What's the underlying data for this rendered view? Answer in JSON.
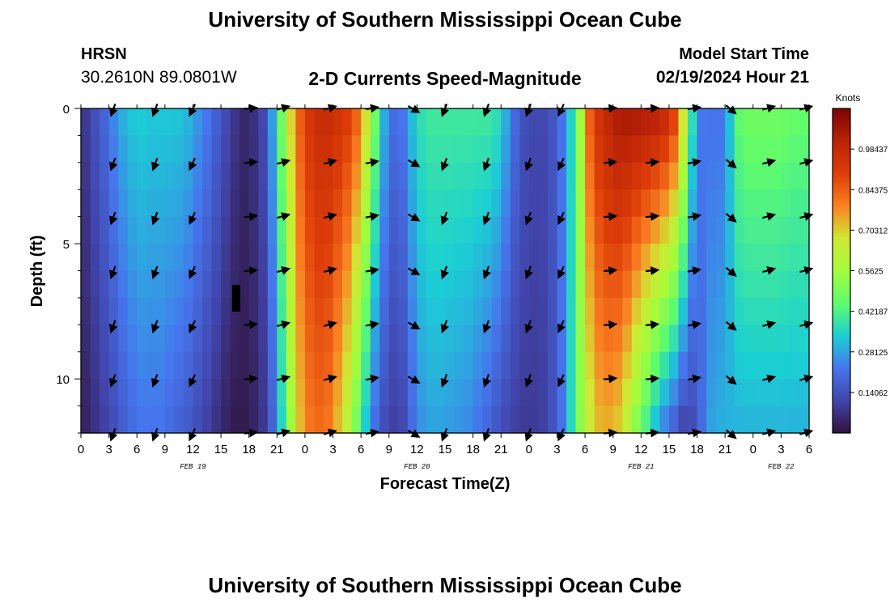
{
  "header": {
    "title": "University of Southern Mississippi Ocean Cube",
    "station_id": "HRSN",
    "coords": "30.2610N  89.0801W",
    "plot_title": "2-D Currents Speed-Magnitude",
    "model_start_label": "Model Start Time",
    "model_start_time": "02/19/2024 Hour 21"
  },
  "footer": {
    "title": "University of Southern Mississippi Ocean Cube"
  },
  "chart_data": {
    "type": "heatmap",
    "title": "2-D Currents Speed-Magnitude",
    "xlabel": "Forecast Time(Z)",
    "ylabel": "Depth (ft)",
    "xlim": [
      0,
      78
    ],
    "ylim": [
      0,
      12
    ],
    "x_ticks": [
      0,
      3,
      6,
      9,
      12,
      15,
      18,
      21,
      24,
      27,
      30,
      33,
      36,
      39,
      42,
      45,
      48,
      51,
      54,
      57,
      60,
      63,
      66,
      69,
      72,
      75,
      78
    ],
    "x_tick_labels": [
      "0",
      "3",
      "6",
      "9",
      "12",
      "15",
      "18",
      "21",
      "0",
      "3",
      "6",
      "9",
      "12",
      "15",
      "18",
      "21",
      "0",
      "3",
      "6",
      "9",
      "12",
      "15",
      "18",
      "21",
      "0",
      "3",
      "6"
    ],
    "y_ticks": [
      0,
      5,
      10
    ],
    "y_tick_labels": [
      "0",
      "5",
      "10"
    ],
    "day_labels": [
      {
        "x": 12,
        "label": "FEB 19"
      },
      {
        "x": 36,
        "label": "FEB 20"
      },
      {
        "x": 60,
        "label": "FEB 21"
      },
      {
        "x": 75,
        "label": "FEB 22"
      }
    ],
    "colorbar": {
      "label": "Knots",
      "min": 0,
      "max": 1.125,
      "tick_values": [
        0.14062,
        0.28125,
        0.42187,
        0.5625,
        0.70312,
        0.84375,
        0.98437
      ],
      "tick_labels": [
        "0.14062",
        "0.28125",
        "0.42187",
        "0.5625",
        "0.70312",
        "0.84375",
        "0.98437"
      ]
    },
    "speed_profile": {
      "hours": [
        0,
        1,
        2,
        3,
        4,
        5,
        6,
        7,
        8,
        9,
        10,
        11,
        12,
        13,
        14,
        15,
        16,
        17,
        18,
        19,
        20,
        21,
        22,
        23,
        24,
        25,
        26,
        27,
        28,
        29,
        30,
        31,
        32,
        33,
        34,
        35,
        36,
        37,
        38,
        39,
        40,
        41,
        42,
        43,
        44,
        45,
        46,
        47,
        48,
        49,
        50,
        51,
        52,
        53,
        54,
        55,
        56,
        57,
        58,
        59,
        60,
        61,
        62,
        63,
        64,
        65,
        66,
        67,
        68,
        69,
        70,
        71,
        72,
        73,
        74,
        75,
        76,
        77
      ],
      "surface_knots": [
        0.09,
        0.14,
        0.19,
        0.25,
        0.3,
        0.33,
        0.34,
        0.33,
        0.33,
        0.33,
        0.33,
        0.31,
        0.27,
        0.23,
        0.18,
        0.13,
        0.08,
        0.05,
        0.07,
        0.12,
        0.28,
        0.48,
        0.7,
        0.85,
        0.93,
        0.97,
        0.97,
        0.95,
        0.92,
        0.85,
        0.7,
        0.48,
        0.3,
        0.21,
        0.23,
        0.32,
        0.38,
        0.4,
        0.4,
        0.4,
        0.4,
        0.4,
        0.4,
        0.4,
        0.38,
        0.3,
        0.2,
        0.14,
        0.12,
        0.12,
        0.15,
        0.22,
        0.35,
        0.55,
        0.85,
        0.95,
        1.0,
        1.04,
        1.05,
        1.05,
        1.04,
        1.03,
        1.0,
        0.92,
        0.7,
        0.38,
        0.23,
        0.22,
        0.22,
        0.32,
        0.45,
        0.48,
        0.48,
        0.48,
        0.48,
        0.47,
        0.46,
        0.46
      ],
      "bottom_knots": [
        0.04,
        0.07,
        0.1,
        0.13,
        0.17,
        0.2,
        0.22,
        0.22,
        0.22,
        0.2,
        0.18,
        0.16,
        0.13,
        0.1,
        0.07,
        0.04,
        0.02,
        0.02,
        0.04,
        0.08,
        0.18,
        0.35,
        0.55,
        0.72,
        0.8,
        0.82,
        0.8,
        0.72,
        0.62,
        0.48,
        0.32,
        0.2,
        0.13,
        0.1,
        0.12,
        0.2,
        0.26,
        0.28,
        0.28,
        0.27,
        0.26,
        0.25,
        0.22,
        0.19,
        0.15,
        0.12,
        0.1,
        0.09,
        0.09,
        0.1,
        0.14,
        0.22,
        0.36,
        0.52,
        0.65,
        0.72,
        0.73,
        0.7,
        0.62,
        0.5,
        0.4,
        0.3,
        0.22,
        0.16,
        0.1,
        0.12,
        0.2,
        0.28,
        0.3,
        0.3,
        0.3,
        0.3,
        0.3,
        0.3,
        0.3,
        0.3,
        0.3,
        0.3
      ]
    },
    "vector_rows_depth_ft": [
      0,
      2,
      4,
      6,
      8,
      10,
      12
    ],
    "vectors": [
      {
        "hour": 3.5,
        "dir": 200
      },
      {
        "hour": 8,
        "dir": 200
      },
      {
        "hour": 12,
        "dir": 205
      },
      {
        "hour": 18,
        "dir": 85
      },
      {
        "hour": 21.5,
        "dir": 75
      },
      {
        "hour": 26.5,
        "dir": 75
      },
      {
        "hour": 31,
        "dir": 80
      },
      {
        "hour": 35.5,
        "dir": 120
      },
      {
        "hour": 39,
        "dir": 200
      },
      {
        "hour": 43.5,
        "dir": 200
      },
      {
        "hour": 48,
        "dir": 200
      },
      {
        "hour": 51.5,
        "dir": 205
      },
      {
        "hour": 56.5,
        "dir": 85
      },
      {
        "hour": 61,
        "dir": 85
      },
      {
        "hour": 65.5,
        "dir": 80
      },
      {
        "hour": 69.5,
        "dir": 130
      },
      {
        "hour": 73.5,
        "dir": 75
      },
      {
        "hour": 77.5,
        "dir": 75
      }
    ]
  }
}
